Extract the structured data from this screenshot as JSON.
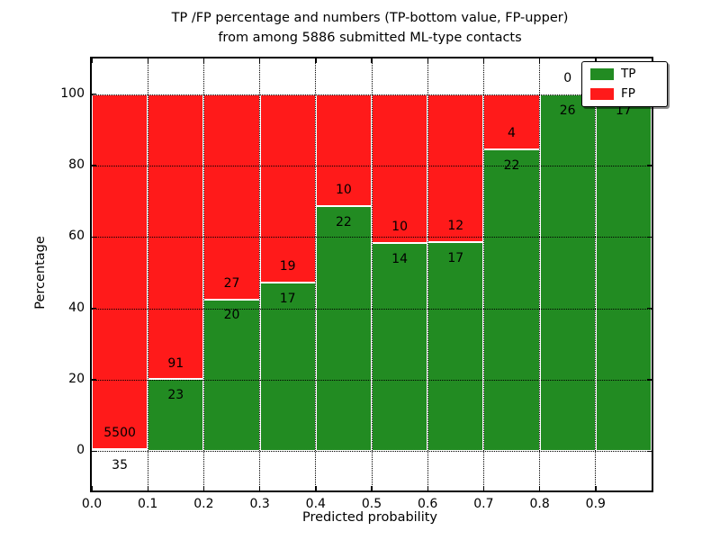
{
  "figure": {
    "title_line1": "TP /FP percentage and numbers (TP-bottom value, FP-upper)",
    "title_line2": "from among 5886 submitted ML-type contacts"
  },
  "chart_data": {
    "type": "bar",
    "subtype": "stacked-percentage-histogram",
    "title": "TP /FP percentage and numbers (TP-bottom value, FP-upper)\nfrom among 5886 submitted ML-type contacts",
    "xlabel": "Predicted probability",
    "ylabel": "Percentage",
    "xlim": [
      0.0,
      1.0
    ],
    "ylim": [
      -11,
      110
    ],
    "xticks": [
      "0.0",
      "0.1",
      "0.2",
      "0.3",
      "0.4",
      "0.5",
      "0.6",
      "0.7",
      "0.8",
      "0.9"
    ],
    "yticks": [
      0,
      20,
      40,
      60,
      80,
      100
    ],
    "grid": {
      "style": "dotted",
      "color": "#000000",
      "axes": "both"
    },
    "bar_edge_color": "#ffffff",
    "colors": {
      "tp": "#228b22",
      "fp": "#ff1a1a"
    },
    "legend": {
      "position": "upper right",
      "entries": [
        {
          "label": "TP",
          "color": "#228b22"
        },
        {
          "label": "FP",
          "color": "#ff1a1a"
        }
      ]
    },
    "bins": [
      {
        "range": "0.0-0.1",
        "tp": 35,
        "fp": 5500,
        "tp_pct": 0.63
      },
      {
        "range": "0.1-0.2",
        "tp": 23,
        "fp": 91,
        "tp_pct": 20.18
      },
      {
        "range": "0.2-0.3",
        "tp": 20,
        "fp": 27,
        "tp_pct": 42.55
      },
      {
        "range": "0.3-0.4",
        "tp": 17,
        "fp": 19,
        "tp_pct": 47.22
      },
      {
        "range": "0.4-0.5",
        "tp": 22,
        "fp": 10,
        "tp_pct": 68.75
      },
      {
        "range": "0.5-0.6",
        "tp": 14,
        "fp": 10,
        "tp_pct": 58.33
      },
      {
        "range": "0.6-0.7",
        "tp": 17,
        "fp": 12,
        "tp_pct": 58.62
      },
      {
        "range": "0.7-0.8",
        "tp": 22,
        "fp": 4,
        "tp_pct": 84.62
      },
      {
        "range": "0.8-0.9",
        "tp": 26,
        "fp": 0,
        "tp_pct": 100
      },
      {
        "range": "0.9-1.0",
        "tp": 17,
        "fp": null,
        "tp_pct": 100
      }
    ]
  }
}
